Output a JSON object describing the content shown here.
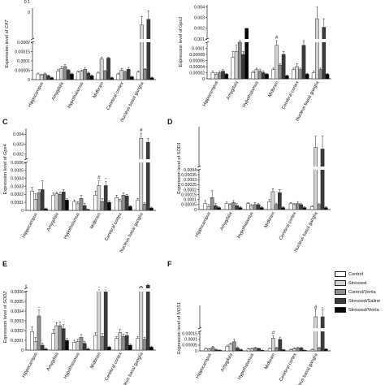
{
  "figure": {
    "legend": [
      {
        "label": "Control",
        "color": "#ffffff"
      },
      {
        "label": "Stressed",
        "color": "#d2d2d2"
      },
      {
        "label": "Control/Venla",
        "color": "#8e8e8e"
      },
      {
        "label": "Stressed/Saline",
        "color": "#3a3a3a"
      },
      {
        "label": "Stressed/Venla",
        "color": "#050505"
      }
    ],
    "stroke_color": "#222222"
  },
  "chart_data": [
    {
      "panel": "A",
      "panel_label": "",
      "type": "bar",
      "ylabel": "Expression level of CAT",
      "italic_word": "CAT",
      "categories": [
        "Hippocampus",
        "Amygdala",
        "Hypothalamus",
        "Midbrain",
        "Cerebral cortex",
        "Nucleus basal ganglia"
      ],
      "series_colors": [
        "#ffffff",
        "#d2d2d2",
        "#8e8e8e",
        "#3a3a3a",
        "#050505"
      ],
      "values": [
        [
          3e-05,
          2.5e-05,
          3e-05,
          2e-05,
          1e-05
        ],
        [
          4.5e-05,
          6e-05,
          7e-05,
          5e-05,
          3e-05
        ],
        [
          4e-05,
          4.5e-05,
          5.5e-05,
          3.5e-05,
          2e-05
        ],
        [
          3.5e-05,
          0.00011,
          4.5e-05,
          0.000115,
          1e-05
        ],
        [
          3e-05,
          5e-05,
          4e-05,
          5.5e-05,
          1.5e-05
        ],
        [
          4e-05,
          0.0046,
          5.5e-05,
          0.0048,
          1e-05
        ]
      ],
      "errors": [
        [
          5e-06,
          5e-06,
          5e-06,
          5e-06,
          3e-06
        ],
        [
          1e-05,
          1e-05,
          1e-05,
          5e-06,
          5e-06
        ],
        [
          5e-06,
          5e-06,
          1e-05,
          5e-06,
          5e-06
        ],
        [
          5e-06,
          1e-05,
          5e-06,
          5e-06,
          3e-06
        ],
        [
          5e-06,
          1e-05,
          5e-06,
          1e-05,
          3e-06
        ],
        [
          5e-06,
          0.0003,
          5e-06,
          0.0003,
          3e-06
        ]
      ],
      "y_break": true,
      "lower_range": [
        0,
        0.0002
      ],
      "lower_ticks": [
        0,
        5e-05,
        0.0001,
        0.00015,
        0.0002
      ],
      "lower_tick_labels": [
        "0",
        "0.00005",
        "0.0001",
        "0.00015",
        "0.0002"
      ],
      "upper_range": [
        0.0041,
        0.0052
      ],
      "upper_ticks": [],
      "upper_tick_labels": [],
      "markers": [],
      "visible_top_labels": [
        "0.1",
        "0"
      ]
    },
    {
      "panel": "B",
      "panel_label": "",
      "type": "bar",
      "ylabel": "Expression level of Gpx1",
      "italic_word": "Gpx1",
      "categories": [
        "Hippocampus",
        "Amygdala",
        "Hypothalamus",
        "Midbrain",
        "Cerebral cortex",
        "Nucleus basal ganglia"
      ],
      "series_colors": [
        "#ffffff",
        "#d2d2d2",
        "#8e8e8e",
        "#3a3a3a",
        "#050505"
      ],
      "values": [
        [
          2e-05,
          1.5e-05,
          2e-05,
          2.5e-05,
          1.5e-05
        ],
        [
          7e-05,
          9e-05,
          0.00012,
          8e-05,
          0.002
        ],
        [
          2e-05,
          3e-05,
          2.5e-05,
          2e-05,
          1.5e-05
        ],
        [
          3e-05,
          0.00011,
          4.5e-05,
          8e-05,
          1e-05
        ],
        [
          3e-05,
          4e-05,
          3e-05,
          0.00011,
          1.5e-05
        ],
        [
          2e-05,
          0.0029,
          3e-05,
          0.0021,
          1.5e-05
        ]
      ],
      "errors": [
        [
          5e-06,
          5e-06,
          5e-06,
          5e-06,
          3e-06
        ],
        [
          2e-05,
          2e-05,
          3e-05,
          1e-05,
          0.0
        ],
        [
          5e-06,
          5e-06,
          5e-06,
          5e-06,
          3e-06
        ],
        [
          5e-06,
          2e-05,
          5e-06,
          1e-05,
          3e-06
        ],
        [
          5e-06,
          1e-05,
          5e-06,
          4e-05,
          3e-06
        ],
        [
          5e-06,
          0.0011,
          5e-06,
          0.0008,
          3e-06
        ]
      ],
      "y_break": true,
      "lower_range": [
        0,
        0.00012
      ],
      "lower_ticks": [
        0,
        2e-05,
        4e-05,
        6e-05,
        8e-05,
        0.0001
      ],
      "lower_tick_labels": [
        "0",
        "0.00002",
        "0.00004",
        "0.00006",
        "0.00008",
        "0.0001"
      ],
      "upper_range": [
        0.001,
        0.0042
      ],
      "upper_ticks": [
        0.001,
        0.002,
        0.003,
        0.004
      ],
      "upper_tick_labels": [
        "0.001",
        "0.002",
        "0.003",
        "0.004"
      ],
      "markers": [
        {
          "group": 3,
          "bar": 1,
          "symbol": "#"
        }
      ],
      "visible_top_labels": []
    },
    {
      "panel": "C",
      "panel_label": "C",
      "type": "bar",
      "ylabel": "Expression level of Gpx4",
      "italic_word": "Gpx4",
      "categories": [
        "Hippocampus",
        "Amygdala",
        "Hypothalamus",
        "Midbrain",
        "Cerebral cortex",
        "Nucleus basal ganglia"
      ],
      "series_colors": [
        "#ffffff",
        "#d2d2d2",
        "#8e8e8e",
        "#3a3a3a",
        "#050505"
      ],
      "values": [
        [
          0.00024,
          0.00014,
          0.00022,
          0.00026,
          2e-05
        ],
        [
          0.00019,
          0.00021,
          0.0002,
          0.00023,
          0.00013
        ],
        [
          0.00011,
          9e-05,
          0.00015,
          6e-05,
          1e-05
        ],
        [
          0.00019,
          0.00031,
          0.00011,
          0.00031,
          0.0001
        ],
        [
          0.00016,
          0.00012,
          0.00019,
          0.00018,
          5e-05
        ],
        [
          0.00013,
          0.0036,
          8e-05,
          0.0032,
          3e-05
        ]
      ],
      "errors": [
        [
          5e-05,
          7e-05,
          4e-05,
          0.00011,
          1e-05
        ],
        [
          3e-05,
          2e-05,
          3e-05,
          3e-05,
          2e-05
        ],
        [
          2e-05,
          2e-05,
          4e-05,
          3e-05,
          5e-06
        ],
        [
          5e-05,
          6e-05,
          4e-05,
          5e-05,
          2e-05
        ],
        [
          3e-05,
          2e-05,
          3e-05,
          2e-05,
          1e-05
        ],
        [
          2e-05,
          0.0005,
          2e-05,
          0.0004,
          1e-05
        ]
      ],
      "y_break": true,
      "lower_range": [
        0,
        0.0006
      ],
      "lower_ticks": [
        0,
        0.0001,
        0.0002,
        0.0003,
        0.0004,
        0.0005,
        0.0006
      ],
      "lower_tick_labels": [
        "0",
        "0.0001",
        "0.0002",
        "0.0003",
        "0.0004",
        "0.0005",
        "0.0006"
      ],
      "upper_range": [
        0.0015,
        0.0046
      ],
      "upper_ticks": [
        0.002,
        0.003,
        0.004
      ],
      "upper_tick_labels": [
        "0.002",
        "0.003",
        "0.004"
      ],
      "markers": [
        {
          "group": 3,
          "bar": 1,
          "symbol": "#"
        },
        {
          "group": 5,
          "bar": 1,
          "symbol": "#"
        },
        {
          "group": 3,
          "bar": 3,
          "symbol": "-"
        }
      ],
      "visible_top_labels": []
    },
    {
      "panel": "D",
      "panel_label": "D",
      "type": "bar",
      "ylabel": "Expression level of SOD1",
      "italic_word": "SOD1",
      "categories": [
        "Hippocampus",
        "Amygdala",
        "Hypothalamus",
        "Midbrain",
        "Cerebral cortex",
        "Nucleus basal ganglia"
      ],
      "series_colors": [
        "#ffffff",
        "#d2d2d2",
        "#8e8e8e",
        "#3a3a3a",
        "#050505"
      ],
      "values": [
        [
          6e-05,
          3e-05,
          0.00012,
          4e-05,
          2e-05
        ],
        [
          6e-05,
          5e-05,
          7e-05,
          4e-05,
          2e-05
        ],
        [
          6e-05,
          4e-05,
          5e-05,
          5e-05,
          2e-05
        ],
        [
          8e-05,
          0.00018,
          5e-05,
          0.00017,
          2e-05
        ],
        [
          6e-05,
          5e-05,
          6e-05,
          5e-05,
          2e-05
        ],
        [
          3e-05,
          0.0092,
          5e-05,
          0.0091,
          2e-05
        ]
      ],
      "errors": [
        [
          3e-05,
          2e-05,
          7e-05,
          2e-05,
          1e-05
        ],
        [
          2e-05,
          1e-05,
          2e-05,
          2e-05,
          1e-05
        ],
        [
          1e-05,
          1e-05,
          2e-05,
          1e-05,
          1e-05
        ],
        [
          2e-05,
          3e-05,
          1e-05,
          3e-05,
          1e-05
        ],
        [
          1e-05,
          1e-05,
          2e-05,
          1e-05,
          1e-05
        ],
        [
          1e-05,
          0.0007,
          1e-05,
          0.0008,
          1e-05
        ]
      ],
      "y_break": true,
      "lower_range": [
        0,
        0.0004
      ],
      "lower_ticks": [
        0,
        5e-05,
        0.0001,
        0.00015,
        0.0002,
        0.00025,
        0.0003,
        0.00035,
        0.0004
      ],
      "lower_tick_labels": [
        "0",
        "0.00005",
        "0.0001",
        "0.00015",
        "0.0002",
        "0.00025",
        "0.0003",
        "0.00035",
        "0.0004"
      ],
      "upper_range": [
        0.008,
        0.0105
      ],
      "upper_ticks": [],
      "upper_tick_labels": [],
      "markers": [],
      "visible_top_labels": []
    },
    {
      "panel": "E",
      "panel_label": "E",
      "type": "bar",
      "ylabel": "Expression level of SOD2",
      "italic_word": "SOD2",
      "categories": [
        "Hippocampus",
        "Amygdala",
        "Hypothalamus",
        "Midbrain",
        "Cerebral cortex",
        "Nucleus basal ganglia"
      ],
      "series_colors": [
        "#ffffff",
        "#d2d2d2",
        "#8e8e8e",
        "#3a3a3a",
        "#050505"
      ],
      "values": [
        [
          0.00019,
          9e-05,
          0.00035,
          5e-05,
          1e-05
        ],
        [
          0.00017,
          0.00025,
          0.00025,
          0.00022,
          0.0001
        ],
        [
          8e-05,
          9e-05,
          0.00013,
          7e-05,
          1e-05
        ],
        [
          0.00015,
          0.00062,
          0.00014,
          0.00061,
          3e-05
        ],
        [
          0.00012,
          0.00018,
          0.00014,
          0.00015,
          5e-05
        ],
        [
          0.00012,
          0.0026,
          0.00011,
          0.0032,
          3e-05
        ]
      ],
      "errors": [
        [
          5e-05,
          4e-05,
          6e-05,
          2e-05,
          1e-05
        ],
        [
          4e-05,
          3e-05,
          4e-05,
          4e-05,
          2e-05
        ],
        [
          2e-05,
          2e-05,
          3e-05,
          2e-05,
          1e-05
        ],
        [
          3e-05,
          1e-05,
          3e-05,
          1e-05,
          1e-05
        ],
        [
          2e-05,
          3e-05,
          2e-05,
          3e-05,
          1e-05
        ],
        [
          2e-05,
          0.0003,
          2e-05,
          0.0005,
          1e-05
        ]
      ],
      "y_break": true,
      "lower_range": [
        0,
        0.0006
      ],
      "lower_ticks": [
        0,
        0.0001,
        0.0002,
        0.0003,
        0.0004,
        0.0005,
        0.0006
      ],
      "lower_tick_labels": [
        "0",
        "0.0001",
        "0.0002",
        "0.0003",
        "0.0004",
        "0.0005",
        "0.0006"
      ],
      "upper_range": [
        0.002,
        0.0036
      ],
      "upper_ticks": [],
      "upper_tick_labels": [],
      "markers": [
        {
          "group": 0,
          "bar": 2,
          "symbol": "-"
        },
        {
          "group": 3,
          "bar": 1,
          "symbol": "-"
        },
        {
          "group": 3,
          "bar": 3,
          "symbol": "-"
        }
      ],
      "visible_top_labels": []
    },
    {
      "panel": "F",
      "panel_label": "F",
      "type": "bar",
      "ylabel": "Expression level of NOS1",
      "italic_word": "NOS1",
      "categories": [
        "Hippocampus",
        "Amygdala",
        "Hypothalamus",
        "Midbrain",
        "Cerebral cortex",
        "Nucleus basal ganglia"
      ],
      "series_colors": [
        "#ffffff",
        "#d2d2d2",
        "#8e8e8e",
        "#3a3a3a",
        "#050505"
      ],
      "values": [
        [
          2e-05,
          1.5e-05,
          3e-05,
          1e-05,
          5e-06
        ],
        [
          4e-05,
          6e-05,
          8e-05,
          2.5e-05,
          1e-05
        ],
        [
          1.5e-05,
          2e-05,
          2.5e-05,
          2e-05,
          5e-06
        ],
        [
          2e-05,
          0.00011,
          2.5e-05,
          0.0001,
          1e-05
        ],
        [
          1e-05,
          2e-05,
          2.5e-05,
          2.5e-05,
          5e-06
        ],
        [
          1e-05,
          0.0037,
          2.5e-05,
          0.0037,
          1.5e-05
        ]
      ],
      "errors": [
        [
          5e-06,
          5e-06,
          1e-05,
          5e-06,
          3e-06
        ],
        [
          1e-05,
          1e-05,
          2e-05,
          1e-05,
          5e-06
        ],
        [
          5e-06,
          5e-06,
          5e-06,
          5e-06,
          3e-06
        ],
        [
          5e-06,
          2e-05,
          5e-06,
          2e-05,
          3e-06
        ],
        [
          5e-06,
          5e-06,
          5e-06,
          5e-06,
          3e-06
        ],
        [
          5e-06,
          0.0002,
          5e-06,
          0.0002,
          5e-06
        ]
      ],
      "y_break": true,
      "lower_range": [
        0,
        0.00017
      ],
      "lower_ticks": [
        0,
        5e-05,
        0.0001,
        0.00015
      ],
      "lower_tick_labels": [
        "0",
        "0.00005",
        "0.0001",
        "0.00015"
      ],
      "upper_range": [
        0.0034,
        0.004
      ],
      "upper_ticks": [],
      "upper_tick_labels": [],
      "markers": [
        {
          "group": 3,
          "bar": 1,
          "symbol": "#"
        },
        {
          "group": 5,
          "bar": 1,
          "symbol": "#"
        },
        {
          "group": 5,
          "bar": 3,
          "symbol": "-"
        }
      ],
      "visible_top_labels": []
    }
  ]
}
